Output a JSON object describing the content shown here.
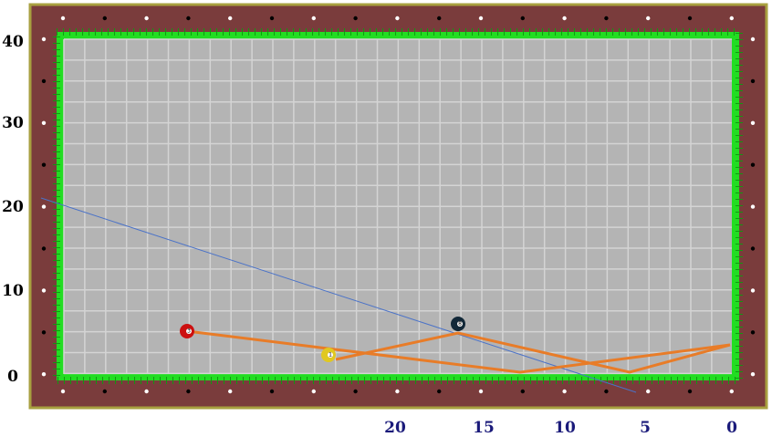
{
  "left_labels": [
    "40",
    "30",
    "20",
    "10",
    "0"
  ],
  "bottom_labels": [
    "20",
    "15",
    "10",
    "5",
    "0"
  ],
  "balls": [
    {
      "label": "3"
    },
    {
      "label": "1"
    },
    {
      "label": "8"
    }
  ]
}
